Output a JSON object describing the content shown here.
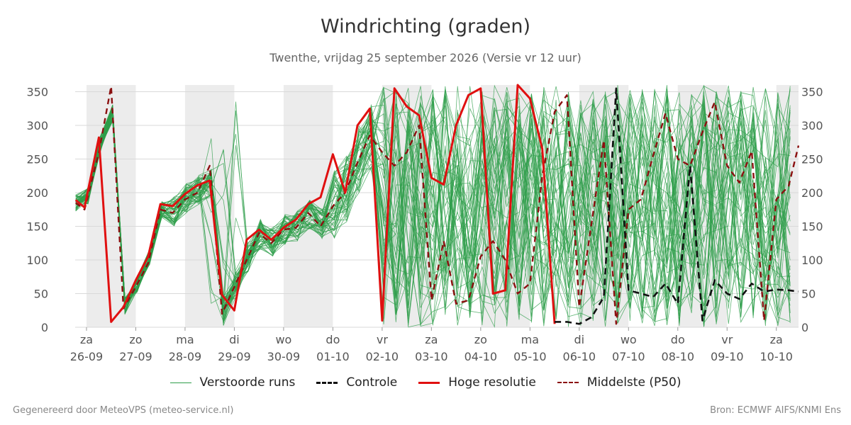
{
  "header": {
    "title": "Windrichting (graden)",
    "subtitle": "Twenthe, vrijdag 25 september 2026 (Versie vr 12 uur)"
  },
  "legend": [
    {
      "label": "Verstoorde runs",
      "color": "#2e9e4a",
      "style": "thin"
    },
    {
      "label": "Controle",
      "color": "#111111",
      "style": "dashed"
    },
    {
      "label": "Hoge resolutie",
      "color": "#e01010",
      "style": "solid"
    },
    {
      "label": "Middelste (P50)",
      "color": "#8b1010",
      "style": "dashed"
    }
  ],
  "footer": {
    "left": "Gegenereerd door MeteoVPS (meteo-service.nl)",
    "right": "Bron: ECMWF AIFS/KNMI Ens"
  },
  "chart_data": {
    "type": "line",
    "title": "Windrichting (graden)",
    "subtitle": "Twenthe, vrijdag 25 september 2026 (Versie vr 12 uur)",
    "x_unit": "days since 26-09 00:00",
    "xlim": [
      -0.23,
      14.45
    ],
    "ylim": [
      0,
      360
    ],
    "y_ticks": [
      0,
      50,
      100,
      150,
      200,
      250,
      300,
      350
    ],
    "grid": true,
    "legend_position": "bottom",
    "x_ticks": [
      {
        "day": "za",
        "date": "26-09"
      },
      {
        "day": "zo",
        "date": "27-09"
      },
      {
        "day": "ma",
        "date": "28-09"
      },
      {
        "day": "di",
        "date": "29-09"
      },
      {
        "day": "wo",
        "date": "30-09"
      },
      {
        "day": "do",
        "date": "01-10"
      },
      {
        "day": "vr",
        "date": "02-10"
      },
      {
        "day": "za",
        "date": "03-10"
      },
      {
        "day": "zo",
        "date": "04-10"
      },
      {
        "day": "ma",
        "date": "05-10"
      },
      {
        "day": "di",
        "date": "06-10"
      },
      {
        "day": "wo",
        "date": "07-10"
      },
      {
        "day": "do",
        "date": "08-10"
      },
      {
        "day": "vr",
        "date": "09-10"
      },
      {
        "day": "za",
        "date": "10-10"
      }
    ],
    "shaded_days": [
      [
        0,
        1
      ],
      [
        2,
        3
      ],
      [
        4,
        5
      ],
      [
        6,
        7
      ],
      [
        8,
        9
      ],
      [
        10,
        11
      ],
      [
        12,
        13
      ],
      [
        14,
        14.45
      ]
    ],
    "series": [
      {
        "name": "Hoge resolutie",
        "color": "#e01010",
        "x": [
          -0.22,
          -0.04,
          0.25,
          0.5,
          0.75,
          1.0,
          1.25,
          1.5,
          1.75,
          2.0,
          2.25,
          2.5,
          2.75,
          3.0,
          3.25,
          3.5,
          3.75,
          4.0,
          4.25,
          4.5,
          4.75,
          5.0,
          5.25,
          5.5,
          5.75,
          6.0,
          6.25,
          6.5,
          6.75,
          7.0,
          7.25,
          7.5,
          7.75,
          8.0,
          8.25,
          8.5,
          8.75,
          9.0,
          9.25,
          9.5
        ],
        "values": [
          189,
          178,
          282,
          8,
          30,
          70,
          105,
          183,
          180,
          198,
          211,
          218,
          48,
          25,
          130,
          145,
          130,
          148,
          160,
          183,
          193,
          257,
          200,
          300,
          325,
          10,
          355,
          328,
          315,
          222,
          212,
          300,
          345,
          355,
          50,
          55,
          360,
          340,
          265,
          5
        ]
      },
      {
        "name": "Controle",
        "color": "#111111",
        "x": [
          9.5,
          9.75,
          10.0,
          10.25,
          10.5,
          10.75,
          11.0,
          11.25,
          11.5,
          11.75,
          12.0,
          12.25,
          12.5,
          12.75,
          13.0,
          13.25,
          13.5,
          13.75,
          14.0,
          14.25,
          14.45
        ],
        "values": [
          8,
          8,
          5,
          15,
          45,
          355,
          55,
          50,
          45,
          65,
          35,
          240,
          10,
          70,
          50,
          42,
          65,
          53,
          56,
          55,
          53
        ]
      },
      {
        "name": "Middelste (P50)",
        "color": "#8b1010",
        "x": [
          -0.22,
          -0.04,
          0.25,
          0.5,
          0.75,
          1.0,
          1.25,
          1.5,
          1.75,
          2.0,
          2.25,
          2.5,
          2.75,
          3.0,
          3.25,
          3.5,
          3.75,
          4.0,
          4.25,
          4.5,
          4.75,
          5.0,
          5.25,
          5.5,
          5.75,
          6.0,
          6.25,
          6.5,
          6.75,
          7.0,
          7.25,
          7.5,
          7.75,
          8.0,
          8.25,
          8.5,
          8.75,
          9.0,
          9.25,
          9.5,
          9.75,
          10.0,
          10.25,
          10.5,
          10.75,
          11.0,
          11.25,
          11.5,
          11.75,
          12.0,
          12.25,
          12.5,
          12.75,
          13.0,
          13.25,
          13.5,
          13.75,
          14.0,
          14.25,
          14.45
        ],
        "values": [
          185,
          175,
          260,
          358,
          28,
          60,
          95,
          175,
          170,
          190,
          200,
          240,
          20,
          60,
          100,
          140,
          125,
          145,
          148,
          170,
          150,
          180,
          200,
          245,
          285,
          260,
          240,
          260,
          300,
          40,
          128,
          35,
          40,
          105,
          128,
          100,
          50,
          65,
          225,
          320,
          345,
          30,
          155,
          278,
          5,
          175,
          190,
          255,
          318,
          250,
          240,
          290,
          335,
          240,
          215,
          262,
          10,
          190,
          210,
          270
        ]
      }
    ]
  }
}
